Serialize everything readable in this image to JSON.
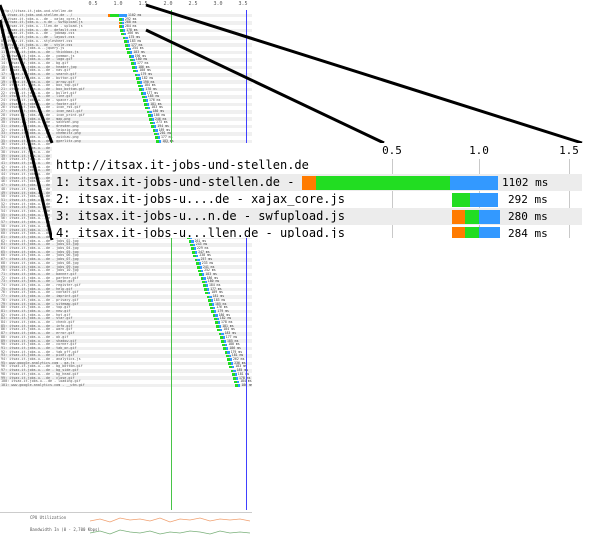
{
  "thumbnail": {
    "axis_ticks": [
      "0.5",
      "1.0",
      "1.5",
      "2.0",
      "2.5",
      "3.0",
      "3.5"
    ],
    "cpu_label": "CPU Utilization",
    "bandwidth_label": "Bandwidth In (0 - 2,700 Kbps)",
    "rows": [
      {
        "label": "http://itsax.it-jobs-und-stellen.de",
        "ms": ""
      },
      {
        "label": "1: itsax.it-jobs-und-stellen.de - /",
        "ms": "1102 ms"
      },
      {
        "label": "2: itsax.it-jobs-u...de - xajax_core.js",
        "ms": "292 ms"
      },
      {
        "label": "3: itsax.it-jobs-u...n.de - swfupload.js",
        "ms": "280 ms"
      },
      {
        "label": "4: itsax.it-jobs-u...llen.de - upload.js",
        "ms": "284 ms"
      },
      {
        "label": "5: itsax.it-jobs-u...de - default.css",
        "ms": "178 ms"
      },
      {
        "label": "6: itsax.it-jobs-u...de - jobmap.css",
        "ms": "266 ms"
      },
      {
        "label": "7: itsax.it-jobs-u...de - layout.css",
        "ms": "175 ms"
      },
      {
        "label": "8: itsax.it-jobs-u...stylesheet.css",
        "ms": "183 ms"
      },
      {
        "label": "9: itsax.it-jobs-u...de - style.css",
        "ms": "177 ms"
      },
      {
        "label": "10: itsax.it-jobs-u...jquery.js",
        "ms": "254 ms"
      },
      {
        "label": "11: itsax.it-jobs-u...de - thickbox.js",
        "ms": "183 ms"
      },
      {
        "label": "12: itsax.it-jobs-u...de - common.js",
        "ms": "190 ms"
      },
      {
        "label": "13: itsax.it-jobs-u...de - logo.gif",
        "ms": "180 ms"
      },
      {
        "label": "14: itsax.it-jobs-u...de - bg.gif",
        "ms": "177 ms"
      },
      {
        "label": "15: itsax.it-jobs-u...de - header.jpg",
        "ms": "186 ms"
      },
      {
        "label": "16: itsax.it-jobs-u...de - nav.gif",
        "ms": "180 ms"
      },
      {
        "label": "17: itsax.it-jobs-u...de - search.gif",
        "ms": "179 ms"
      },
      {
        "label": "18: itsax.it-jobs-u...de - button.gif",
        "ms": "182 ms"
      },
      {
        "label": "19: itsax.it-jobs-u...de - arrow.gif",
        "ms": "190 ms"
      },
      {
        "label": "20: itsax.it-jobs-u...de - box_top.gif",
        "ms": "184 ms"
      },
      {
        "label": "21: itsax.it-jobs-u...de - box_bottom.gif",
        "ms": "178 ms"
      },
      {
        "label": "22: itsax.it-jobs-u...de - bullet.gif",
        "ms": "177 ms"
      },
      {
        "label": "23: itsax.it-jobs-u...de - line.gif",
        "ms": "185 ms"
      },
      {
        "label": "24: itsax.it-jobs-u...de - spacer.gif",
        "ms": "176 ms"
      },
      {
        "label": "25: itsax.it-jobs-u...de - footer.gif",
        "ms": "181 ms"
      },
      {
        "label": "26: itsax.it-jobs-u...de - icon_rss.gif",
        "ms": "183 ms"
      },
      {
        "label": "27: itsax.it-jobs-u...de - icon_mail.gif",
        "ms": "180 ms"
      },
      {
        "label": "28: itsax.it-jobs-u...de - icon_print.gif",
        "ms": "186 ms"
      },
      {
        "label": "29: itsax.it-jobs-u...de - map.png",
        "ms": "246 ms"
      },
      {
        "label": "30: itsax.it-jobs-u...de - sachsen.png",
        "ms": "273 ms"
      },
      {
        "label": "31: itsax.it-jobs-u...de - dresden.png",
        "ms": "194 ms"
      },
      {
        "label": "32: itsax.it-jobs-u...de - leipzig.png",
        "ms": "189 ms"
      },
      {
        "label": "33: itsax.it-jobs-u...de - chemnitz.png",
        "ms": "201 ms"
      },
      {
        "label": "34: itsax.it-jobs-u...de - zwickau.png",
        "ms": "177 ms"
      },
      {
        "label": "35: itsax.it-jobs-u...de - goerlitz.png",
        "ms": "183 ms"
      },
      {
        "label": "36: itsax.it-jobs-u...de - plauen.png",
        "ms": "179 ms"
      },
      {
        "label": "37: itsax.it-jobs-u...de - bautzen.png",
        "ms": "182 ms"
      },
      {
        "label": "38: itsax.it-jobs-u...de - freiberg.png",
        "ms": "180 ms"
      },
      {
        "label": "39: itsax.it-jobs-u...de - meissen.png",
        "ms": "184 ms"
      },
      {
        "label": "40: itsax.it-jobs-u...de - pirna.png",
        "ms": "186 ms"
      },
      {
        "label": "41: itsax.it-jobs-u...de - riesa.png",
        "ms": "177 ms"
      },
      {
        "label": "42: itsax.it-jobs-u...de - torgau.png",
        "ms": "175 ms"
      },
      {
        "label": "43: itsax.it-jobs-u...de - delitzsch.png",
        "ms": "181 ms"
      },
      {
        "label": "44: itsax.it-jobs-u...de - grimma.png",
        "ms": "190 ms"
      },
      {
        "label": "45: itsax.it-jobs-u...de - doebeln.png",
        "ms": "178 ms"
      },
      {
        "label": "46: itsax.it-jobs-u...de - kamenz.png",
        "ms": "183 ms"
      },
      {
        "label": "47: itsax.it-jobs-u...de - hoyerswerda.png",
        "ms": "184 ms"
      },
      {
        "label": "48: itsax.it-jobs-u...de - loebau.png",
        "ms": "180 ms"
      },
      {
        "label": "49: itsax.it-jobs-u...de - zittau.png",
        "ms": "176 ms"
      },
      {
        "label": "50: itsax.it-jobs-u...de - annaberg.png",
        "ms": "185 ms"
      },
      {
        "label": "51: itsax.it-jobs-u...de - aue.png",
        "ms": "186 ms"
      },
      {
        "label": "52: itsax.it-jobs-u...de - marienberg.png",
        "ms": "177 ms"
      },
      {
        "label": "53: itsax.it-jobs-u...de - glauchau.png",
        "ms": "188 ms"
      },
      {
        "label": "54: itsax.it-jobs-u...de - reichenbach.png",
        "ms": "180 ms"
      },
      {
        "label": "55: itsax.it-jobs-u...de - oschatz.png",
        "ms": "179 ms"
      },
      {
        "label": "56: itsax.it-jobs-u...de - wurzen.png",
        "ms": "181 ms"
      },
      {
        "label": "57: itsax.it-jobs-u...de - borna.png",
        "ms": "182 ms"
      },
      {
        "label": "58: itsax.it-jobs-u...de - mittweida.png",
        "ms": "183 ms"
      },
      {
        "label": "59: itsax.it-jobs-u...de - flag_de.gif",
        "ms": "178 ms"
      },
      {
        "label": "60: itsax.it-jobs-u...de - flag_en.gif",
        "ms": "177 ms"
      },
      {
        "label": "61: itsax.it-jobs-u...de - jobs_01.jpg",
        "ms": "250 ms"
      },
      {
        "label": "62: itsax.it-jobs-u...de - jobs_02.jpg",
        "ms": "261 ms"
      },
      {
        "label": "63: itsax.it-jobs-u...de - jobs_03.jpg",
        "ms": "243 ms"
      },
      {
        "label": "64: itsax.it-jobs-u...de - jobs_04.jpg",
        "ms": "229 ms"
      },
      {
        "label": "65: itsax.it-jobs-u...de - jobs_05.jpg",
        "ms": "247 ms"
      },
      {
        "label": "66: itsax.it-jobs-u...de - jobs_06.jpg",
        "ms": "238 ms"
      },
      {
        "label": "67: itsax.it-jobs-u...de - jobs_07.jpg",
        "ms": "257 ms"
      },
      {
        "label": "68: itsax.it-jobs-u...de - jobs_08.jpg",
        "ms": "233 ms"
      },
      {
        "label": "69: itsax.it-jobs-u...de - jobs_09.jpg",
        "ms": "241 ms"
      },
      {
        "label": "70: itsax.it-jobs-u...de - jobs_10.jpg",
        "ms": "252 ms"
      },
      {
        "label": "71: itsax.it-jobs-u...de - banner.gif",
        "ms": "183 ms"
      },
      {
        "label": "72: itsax.it-jobs-u...de - partner.gif",
        "ms": "186 ms"
      },
      {
        "label": "73: itsax.it-jobs-u...de - login.gif",
        "ms": "180 ms"
      },
      {
        "label": "74: itsax.it-jobs-u...de - register.gif",
        "ms": "184 ms"
      },
      {
        "label": "75: itsax.it-jobs-u...de - help.gif",
        "ms": "177 ms"
      },
      {
        "label": "76: itsax.it-jobs-u...de - contact.gif",
        "ms": "189 ms"
      },
      {
        "label": "77: itsax.it-jobs-u...de - imprint.gif",
        "ms": "181 ms"
      },
      {
        "label": "78: itsax.it-jobs-u...de - privacy.gif",
        "ms": "183 ms"
      },
      {
        "label": "79: itsax.it-jobs-u...de - sitemap.gif",
        "ms": "185 ms"
      },
      {
        "label": "80: itsax.it-jobs-u...de - top.gif",
        "ms": "176 ms"
      },
      {
        "label": "81: itsax.it-jobs-u...de - new.gif",
        "ms": "179 ms"
      },
      {
        "label": "82: itsax.it-jobs-u...de - hot.gif",
        "ms": "180 ms"
      },
      {
        "label": "83: itsax.it-jobs-u...de - star.gif",
        "ms": "182 ms"
      },
      {
        "label": "84: itsax.it-jobs-u...de - check.gif",
        "ms": "178 ms"
      },
      {
        "label": "85: itsax.it-jobs-u...de - info.gif",
        "ms": "181 ms"
      },
      {
        "label": "86: itsax.it-jobs-u...de - warn.gif",
        "ms": "184 ms"
      },
      {
        "label": "87: itsax.it-jobs-u...de - error.gif",
        "ms": "183 ms"
      },
      {
        "label": "88: itsax.it-jobs-u...de - ok.gif",
        "ms": "177 ms"
      },
      {
        "label": "89: itsax.it-jobs-u...de - shadow.gif",
        "ms": "185 ms"
      },
      {
        "label": "90: itsax.it-jobs-u...de - corner.gif",
        "ms": "180 ms"
      },
      {
        "label": "91: itsax.it-jobs-u...de - tab_on.gif",
        "ms": "186 ms"
      },
      {
        "label": "92: itsax.it-jobs-u...de - tab_off.gif",
        "ms": "179 ms"
      },
      {
        "label": "93: itsax.it-jobs-u...de - pixel.gif",
        "ms": "181 ms"
      },
      {
        "label": "94: itsax.it-jobs-u...de - analytics.js",
        "ms": "262 ms"
      },
      {
        "label": "95: www.google-analytics.com - ga.js",
        "ms": "236 ms"
      },
      {
        "label": "96: itsax.it-jobs-u...de - bg_bottom.gif",
        "ms": "183 ms"
      },
      {
        "label": "97: itsax.it-jobs-u...de - bg_side.gif",
        "ms": "185 ms"
      },
      {
        "label": "98: itsax.it-jobs-u...de - bg_head.gif",
        "ms": "181 ms"
      },
      {
        "label": "99: itsax.it-jobs-u...de - close.gif",
        "ms": "178 ms"
      },
      {
        "label": "100: itsax.it-jobs-u...de - loading.gif",
        "ms": "184 ms"
      },
      {
        "label": "101: www.google-analytics.com - __utm.gif",
        "ms": "186 ms"
      }
    ]
  },
  "zoom": {
    "ticks": [
      "0.5",
      "1.0",
      "1.5"
    ],
    "rows": [
      {
        "label": "http://itsax.it-jobs-und-stellen.de",
        "ms": ""
      },
      {
        "label": "1: itsax.it-jobs-und-stellen.de - /",
        "ms": "1102 ms"
      },
      {
        "label": "2: itsax.it-jobs-u....de - xajax_core.js",
        "ms": "292 ms"
      },
      {
        "label": "3: itsax.it-jobs-u...n.de - swfupload.js",
        "ms": "280 ms"
      },
      {
        "label": "4: itsax.it-jobs-u...llen.de - upload.js",
        "ms": "284 ms"
      }
    ]
  },
  "colors": {
    "dns": "#ff7b00",
    "connect": "#ff7b00",
    "ttfb": "#22dd22",
    "download": "#3399ff",
    "row_shade": "#ececec",
    "start_render": "#47c447",
    "doc_complete": "#4040ff"
  }
}
